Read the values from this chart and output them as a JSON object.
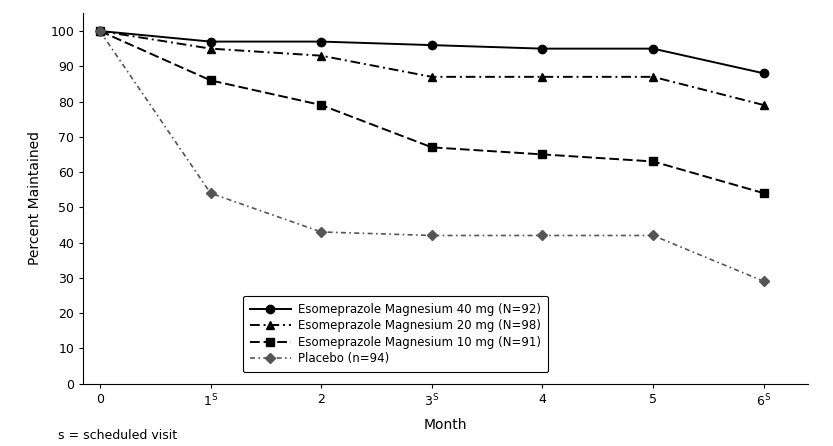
{
  "title": "",
  "xlabel": "Month",
  "ylabel": "Percent Maintained",
  "footnote": "s = scheduled visit",
  "xlim": [
    -0.15,
    6.4
  ],
  "ylim": [
    0,
    105
  ],
  "yticks": [
    0,
    10,
    20,
    30,
    40,
    50,
    60,
    70,
    80,
    90,
    100
  ],
  "xticks": [
    0,
    1,
    2,
    3,
    4,
    5,
    6
  ],
  "xtick_labels": [
    "0",
    "1",
    "2",
    "3",
    "4",
    "5",
    "6"
  ],
  "xtick_superscript": [
    false,
    true,
    false,
    true,
    false,
    false,
    true
  ],
  "series": [
    {
      "label": "Esomeprazole Magnesium 40 mg (N=92)",
      "x": [
        0,
        1,
        2,
        3,
        4,
        5,
        6
      ],
      "y": [
        100,
        97,
        97,
        96,
        95,
        95,
        88
      ],
      "color": "#000000",
      "linestyle": "solid",
      "marker": "o",
      "markersize": 6,
      "linewidth": 1.4,
      "dashes": null,
      "markerfilled": true
    },
    {
      "label": "Esomeprazole Magnesium 20 mg (N=98)",
      "x": [
        0,
        1,
        2,
        3,
        4,
        5,
        6
      ],
      "y": [
        100,
        95,
        93,
        87,
        87,
        87,
        79
      ],
      "color": "#000000",
      "linestyle": "dashdot",
      "marker": "^",
      "markersize": 6,
      "linewidth": 1.4,
      "dashes": [
        5,
        2,
        1,
        2
      ],
      "markerfilled": true
    },
    {
      "label": "Esomeprazole Magnesium 10 mg (N=91)",
      "x": [
        0,
        1,
        2,
        3,
        4,
        5,
        6
      ],
      "y": [
        100,
        86,
        79,
        67,
        65,
        63,
        54
      ],
      "color": "#000000",
      "linestyle": "dashed",
      "marker": "s",
      "markersize": 6,
      "linewidth": 1.4,
      "dashes": [
        5,
        2
      ],
      "markerfilled": true
    },
    {
      "label": "Placebo (n=94)",
      "x": [
        0,
        1,
        2,
        3,
        4,
        5,
        6
      ],
      "y": [
        100,
        54,
        43,
        42,
        42,
        42,
        29
      ],
      "color": "#555555",
      "linestyle": "dashed",
      "marker": "D",
      "markersize": 5,
      "linewidth": 1.2,
      "dashes": [
        3,
        2,
        1,
        2
      ],
      "markerfilled": true
    }
  ],
  "legend_loc": "lower left",
  "background_color": "#ffffff",
  "axis_fontsize": 10,
  "tick_fontsize": 9,
  "legend_fontsize": 8.5
}
